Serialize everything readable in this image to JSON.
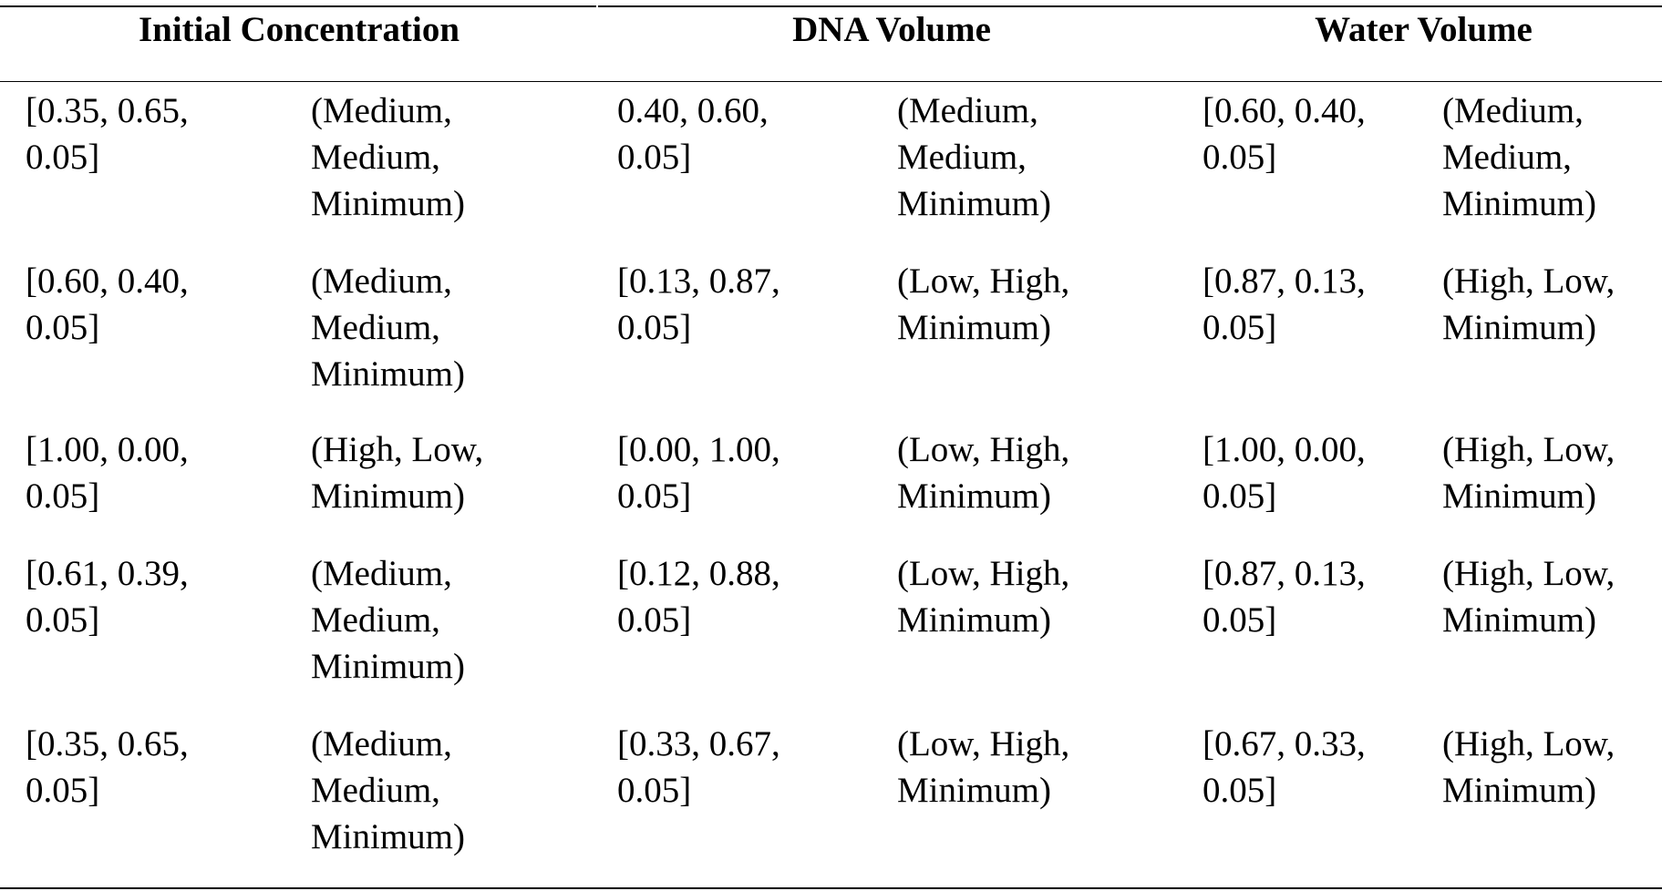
{
  "table": {
    "headers": [
      "Initial Concentration",
      "DNA Volume",
      "Water Volume"
    ],
    "rows": [
      {
        "init_vector": "[0.35, 0.65, 0.05]",
        "init_level": "(Medium, Medium, Minimum)",
        "dna_vector": "0.40, 0.60, 0.05]",
        "dna_level": "(Medium, Medium, Minimum)",
        "water_vector": "[0.60, 0.40, 0.05]",
        "water_level": "(Medium, Medium, Minimum)"
      },
      {
        "init_vector": "[0.60, 0.40, 0.05]",
        "init_level": "(Medium, Medium, Minimum)",
        "dna_vector": "[0.13, 0.87, 0.05]",
        "dna_level": "(Low, High, Minimum)",
        "water_vector": "[0.87, 0.13, 0.05]",
        "water_level": "(High, Low, Minimum)"
      },
      {
        "init_vector": "[1.00, 0.00, 0.05]",
        "init_level": "(High, Low, Minimum)",
        "dna_vector": "[0.00, 1.00, 0.05]",
        "dna_level": "(Low, High, Minimum)",
        "water_vector": "[1.00, 0.00, 0.05]",
        "water_level": "(High, Low, Minimum)"
      },
      {
        "init_vector": "[0.61, 0.39, 0.05]",
        "init_level": "(Medium, Medium, Minimum)",
        "dna_vector": "[0.12, 0.88, 0.05]",
        "dna_level": "(Low, High, Minimum)",
        "water_vector": "[0.87, 0.13, 0.05]",
        "water_level": "(High, Low, Minimum)"
      },
      {
        "init_vector": "[0.35, 0.65, 0.05]",
        "init_level": "(Medium, Medium, Minimum)",
        "dna_vector": "[0.33, 0.67, 0.05]",
        "dna_level": "(Low, High, Minimum)",
        "water_vector": "[0.67, 0.33, 0.05]",
        "water_level": "(High, Low, Minimum)"
      }
    ]
  }
}
